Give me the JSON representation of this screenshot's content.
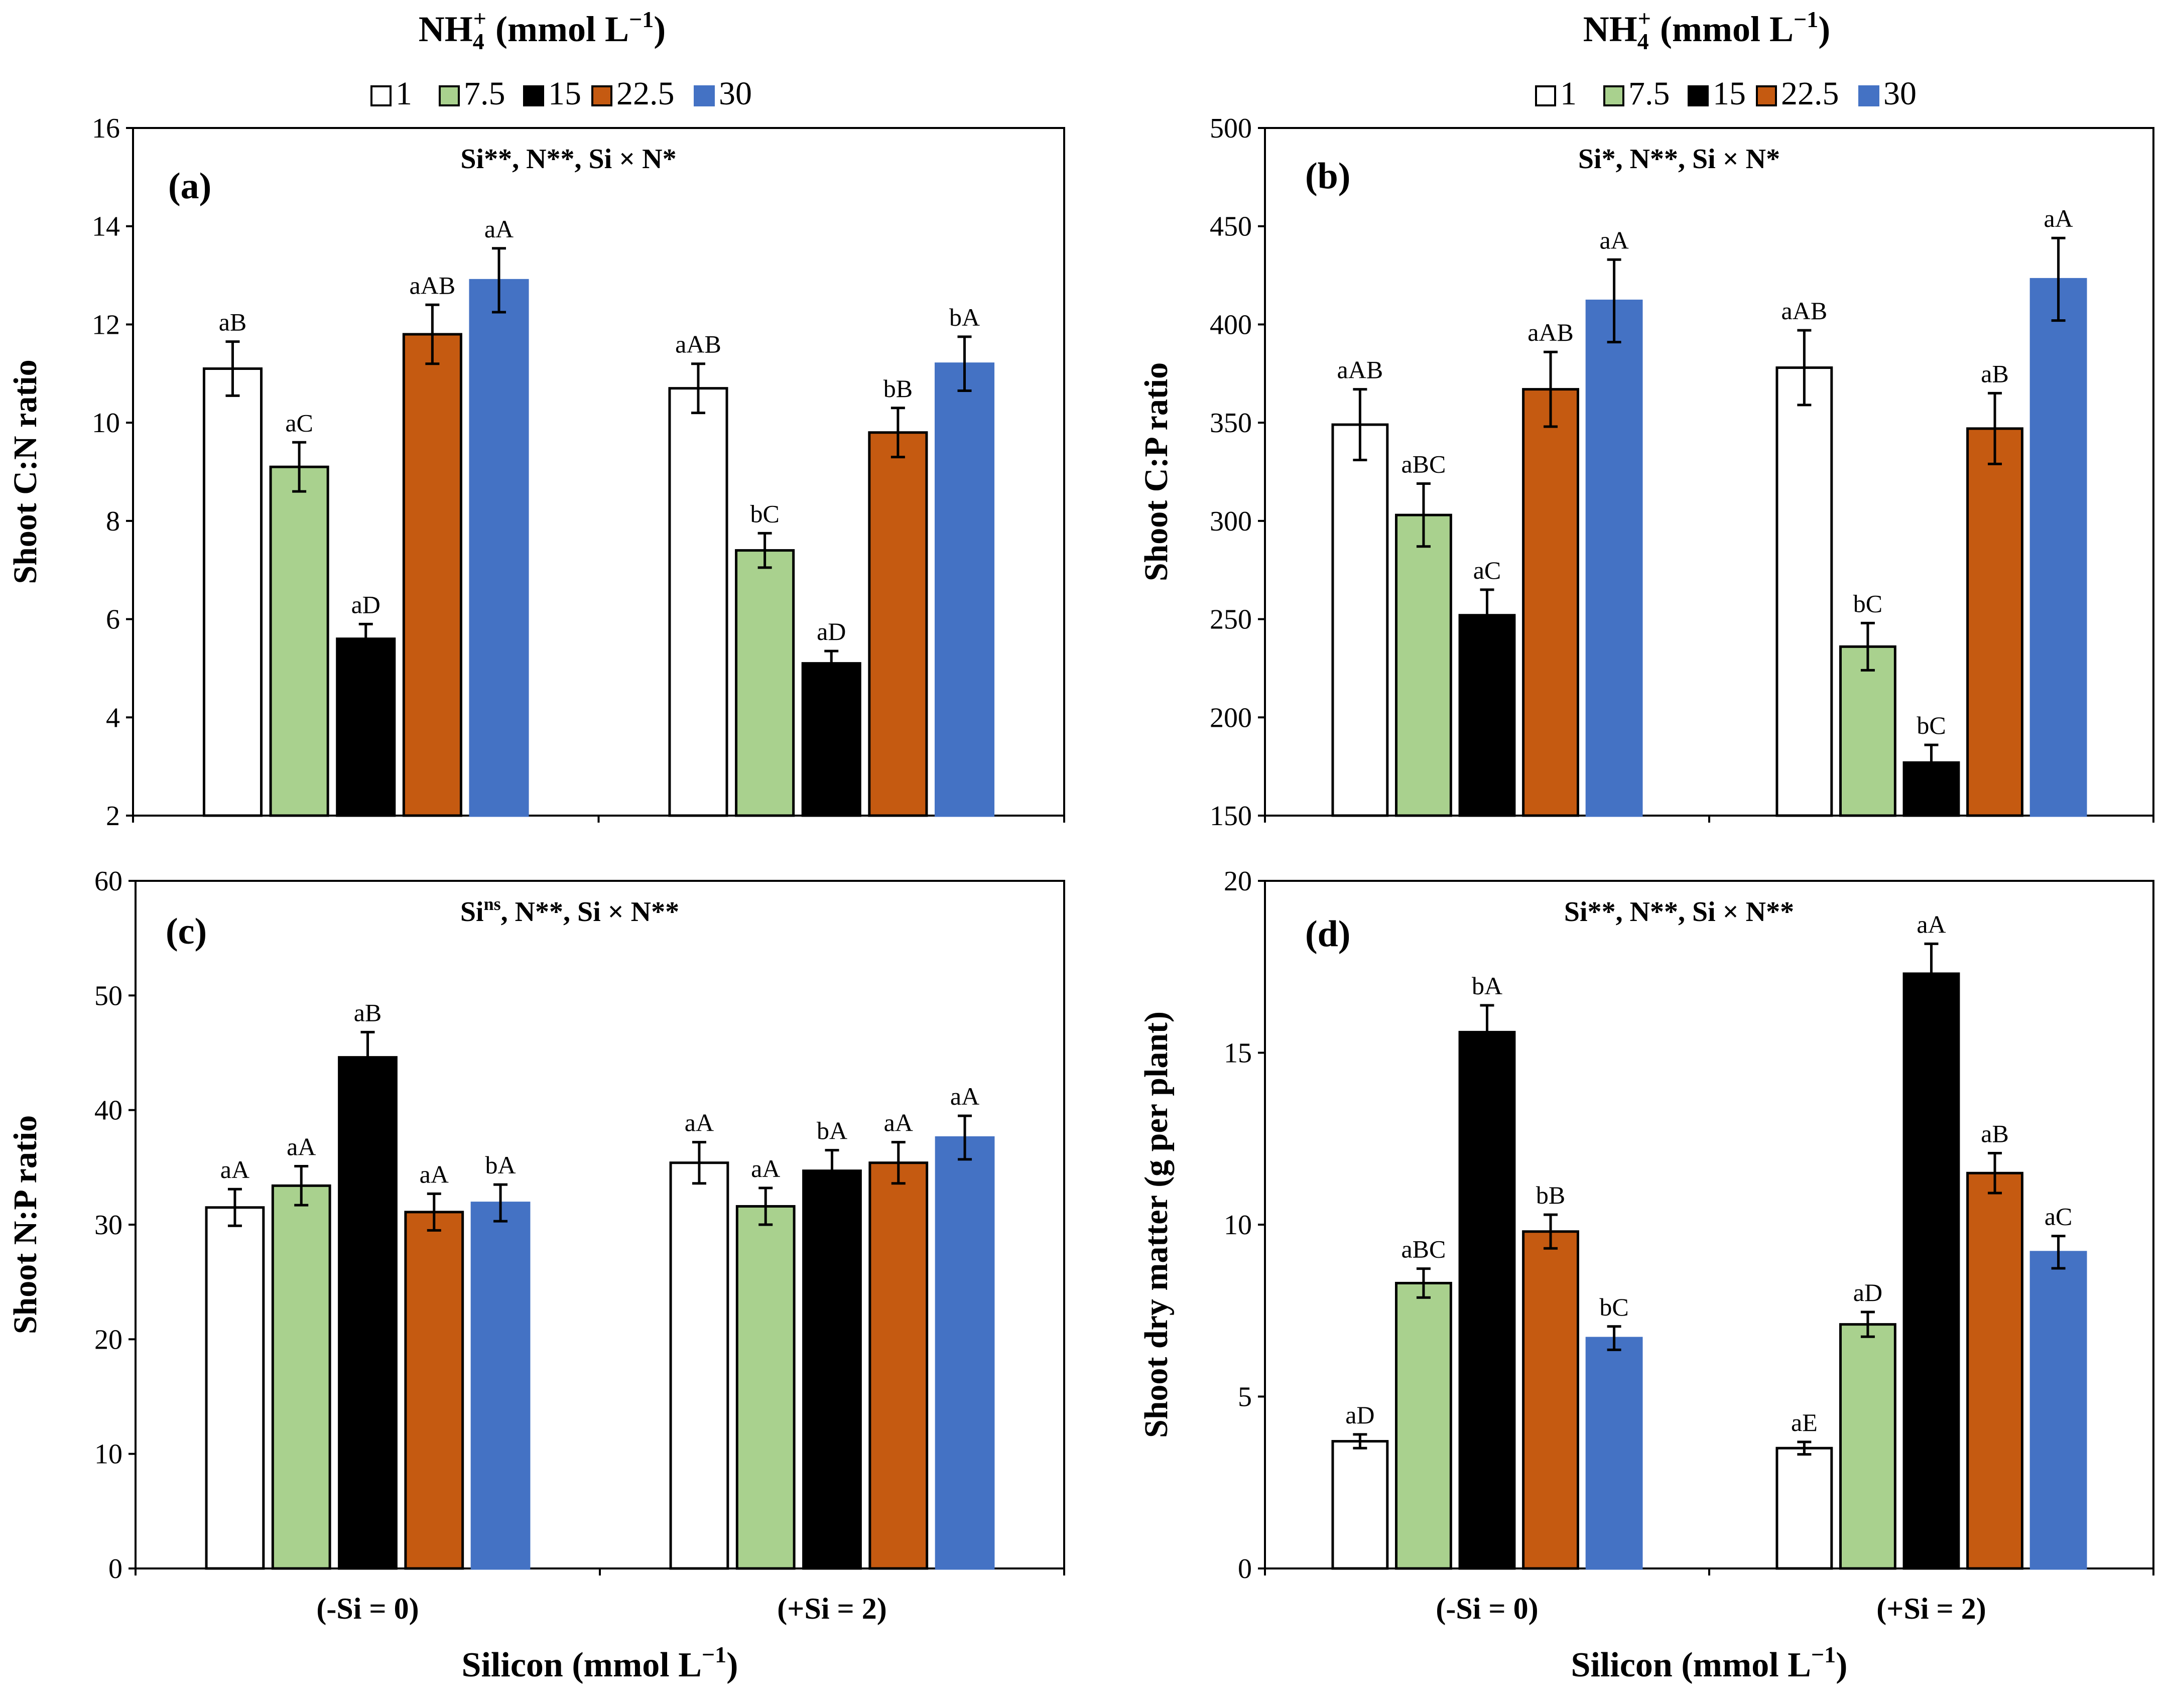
{
  "figure": {
    "legend_title_main": "NH",
    "legend_title_sub": "4",
    "legend_title_sup": "+",
    "legend_title_units": " (mmol L",
    "legend_title_units_sup": "−1",
    "legend_title_close": ")",
    "xlabel_main": "Silicon (mmol L",
    "xlabel_sup": "−1",
    "xlabel_close": ")"
  },
  "chart_data": [
    {
      "type": "bar",
      "panel_label": "(a)",
      "stats_parts": [
        "Si**, N**, Si × N*"
      ],
      "ylabel": "Shoot C:N ratio",
      "ylim": [
        2,
        16
      ],
      "yticks": [
        2,
        4,
        6,
        8,
        10,
        12,
        14,
        16
      ],
      "categories": [
        "(-Si = 0)",
        "(+Si = 2)"
      ],
      "show_category_labels": false,
      "series": [
        {
          "name": "1",
          "values": [
            11.1,
            10.7
          ],
          "errors": [
            0.55,
            0.5
          ],
          "labels": [
            "aB",
            "aAB"
          ]
        },
        {
          "name": "7.5",
          "values": [
            9.1,
            7.4
          ],
          "errors": [
            0.5,
            0.35
          ],
          "labels": [
            "aC",
            "bC"
          ]
        },
        {
          "name": "15",
          "values": [
            5.6,
            5.1
          ],
          "errors": [
            0.3,
            0.25
          ],
          "labels": [
            "aD",
            "aD"
          ]
        },
        {
          "name": "22.5",
          "values": [
            11.8,
            9.8
          ],
          "errors": [
            0.6,
            0.5
          ],
          "labels": [
            "aAB",
            "bB"
          ]
        },
        {
          "name": "30",
          "values": [
            12.9,
            11.2
          ],
          "errors": [
            0.65,
            0.55
          ],
          "labels": [
            "aA",
            "bA"
          ]
        }
      ]
    },
    {
      "type": "bar",
      "panel_label": "(b)",
      "stats_parts": [
        "Si*, N**, Si × N*"
      ],
      "ylabel": "Shoot C:P ratio",
      "ylim": [
        150,
        500
      ],
      "yticks": [
        150,
        200,
        250,
        300,
        350,
        400,
        450,
        500
      ],
      "categories": [
        "(-Si = 0)",
        "(+Si = 2)"
      ],
      "show_category_labels": false,
      "series": [
        {
          "name": "1",
          "values": [
            349,
            378
          ],
          "errors": [
            18,
            19
          ],
          "labels": [
            "aAB",
            "aAB"
          ]
        },
        {
          "name": "7.5",
          "values": [
            303,
            236
          ],
          "errors": [
            16,
            12
          ],
          "labels": [
            "aBC",
            "bC"
          ]
        },
        {
          "name": "15",
          "values": [
            252,
            177
          ],
          "errors": [
            13,
            9
          ],
          "labels": [
            "aC",
            "bC"
          ]
        },
        {
          "name": "22.5",
          "values": [
            367,
            347
          ],
          "errors": [
            19,
            18
          ],
          "labels": [
            "aAB",
            "aB"
          ]
        },
        {
          "name": "30",
          "values": [
            412,
            423
          ],
          "errors": [
            21,
            21
          ],
          "labels": [
            "aA",
            "aA"
          ]
        }
      ]
    },
    {
      "type": "bar",
      "panel_label": "(c)",
      "stats_parts": [
        "Si",
        "ns",
        ", N**, Si × N**"
      ],
      "ylabel": "Shoot N:P ratio",
      "ylim": [
        0,
        60
      ],
      "yticks": [
        0,
        10,
        20,
        30,
        40,
        50,
        60
      ],
      "categories": [
        "(-Si = 0)",
        "(+Si = 2)"
      ],
      "show_category_labels": true,
      "series": [
        {
          "name": "1",
          "values": [
            31.5,
            35.4
          ],
          "errors": [
            1.6,
            1.8
          ],
          "labels": [
            "aA",
            "aA"
          ]
        },
        {
          "name": "7.5",
          "values": [
            33.4,
            31.6
          ],
          "errors": [
            1.7,
            1.6
          ],
          "labels": [
            "aA",
            "aA"
          ]
        },
        {
          "name": "15",
          "values": [
            44.6,
            34.7
          ],
          "errors": [
            2.2,
            1.8
          ],
          "labels": [
            "aB",
            "bA"
          ]
        },
        {
          "name": "22.5",
          "values": [
            31.1,
            35.4
          ],
          "errors": [
            1.6,
            1.8
          ],
          "labels": [
            "aA",
            "aA"
          ]
        },
        {
          "name": "30",
          "values": [
            31.9,
            37.6
          ],
          "errors": [
            1.6,
            1.9
          ],
          "labels": [
            "bA",
            "aA"
          ]
        }
      ]
    },
    {
      "type": "bar",
      "panel_label": "(d)",
      "stats_parts": [
        "Si**, N**, Si × N**"
      ],
      "ylabel": "Shoot dry matter (g per plant)",
      "ylim": [
        0,
        20
      ],
      "yticks": [
        0,
        5,
        10,
        15,
        20
      ],
      "categories": [
        "(-Si = 0)",
        "(+Si = 2)"
      ],
      "show_category_labels": true,
      "series": [
        {
          "name": "1",
          "values": [
            3.7,
            3.5
          ],
          "errors": [
            0.2,
            0.18
          ],
          "labels": [
            "aD",
            "aE"
          ]
        },
        {
          "name": "7.5",
          "values": [
            8.3,
            7.1
          ],
          "errors": [
            0.42,
            0.36
          ],
          "labels": [
            "aBC",
            "aD"
          ]
        },
        {
          "name": "15",
          "values": [
            15.6,
            17.3
          ],
          "errors": [
            0.78,
            0.87
          ],
          "labels": [
            "bA",
            "aA"
          ]
        },
        {
          "name": "22.5",
          "values": [
            9.8,
            11.5
          ],
          "errors": [
            0.49,
            0.58
          ],
          "labels": [
            "bB",
            "aB"
          ]
        },
        {
          "name": "30",
          "values": [
            6.7,
            9.2
          ],
          "errors": [
            0.34,
            0.47
          ],
          "labels": [
            "bC",
            "aC"
          ]
        }
      ]
    }
  ],
  "colors": {
    "series_fill": [
      "#ffffff",
      "#a9d18e",
      "#000000",
      "#c55a11",
      "#4472c4"
    ],
    "series_stroke": [
      "#000000",
      "#000000",
      "#000000",
      "#000000",
      "#4472c4"
    ]
  }
}
